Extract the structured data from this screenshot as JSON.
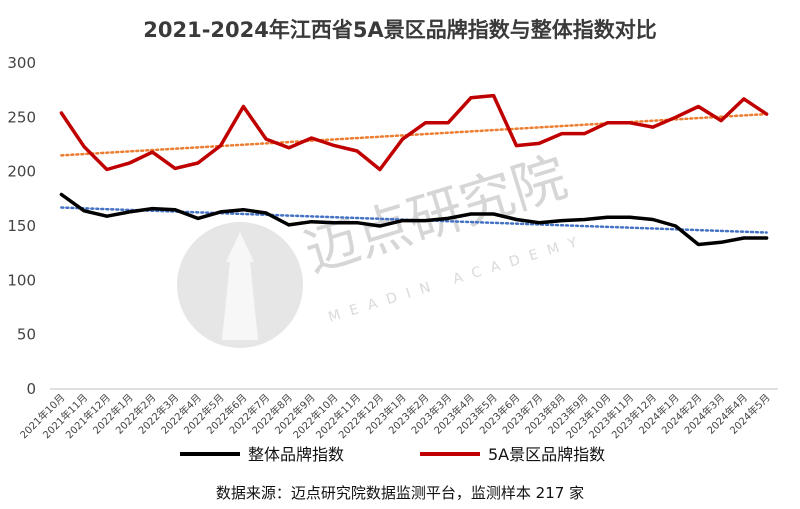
{
  "title": "2021-2024年江西省5A景区品牌指数与整体指数对比",
  "source_note": "数据来源：迈点研究院数据监测平台，监测样本 217 家",
  "watermark": {
    "text": "迈点研究院",
    "subtext": "MEADIN ACADEMY"
  },
  "colors": {
    "overall": "#000000",
    "five_a": "#c00000",
    "overall_trend": "#4472c4",
    "five_a_trend": "#ed7d31"
  },
  "chart_data": {
    "type": "line",
    "title": "2021-2024年江西省5A景区品牌指数与整体指数对比",
    "xlabel": "",
    "ylabel": "",
    "ylim": [
      0,
      300
    ],
    "yticks": [
      0,
      50,
      100,
      150,
      200,
      250,
      300
    ],
    "grid": false,
    "legend_position": "bottom",
    "categories": [
      "2021年10月",
      "2021年11月",
      "2021年12月",
      "2022年1月",
      "2022年2月",
      "2022年3月",
      "2022年4月",
      "2022年5月",
      "2022年6月",
      "2022年7月",
      "2022年8月",
      "2022年9月",
      "2022年10月",
      "2022年11月",
      "2022年12月",
      "2023年1月",
      "2023年2月",
      "2023年3月",
      "2023年4月",
      "2023年5月",
      "2023年6月",
      "2023年7月",
      "2023年8月",
      "2023年9月",
      "2023年10月",
      "2023年11月",
      "2023年12月",
      "2024年1月",
      "2024年2月",
      "2024年3月",
      "2024年4月",
      "2024年5月"
    ],
    "series": [
      {
        "name": "整体品牌指数",
        "color": "#000000",
        "values": [
          179,
          164,
          159,
          163,
          166,
          165,
          157,
          163,
          165,
          162,
          151,
          154,
          153,
          153,
          150,
          155,
          155,
          157,
          161,
          161,
          156,
          153,
          155,
          156,
          158,
          158,
          156,
          150,
          133,
          135,
          139,
          139
        ]
      },
      {
        "name": "5A景区品牌指数",
        "color": "#c00000",
        "values": [
          254,
          223,
          202,
          208,
          218,
          203,
          208,
          224,
          260,
          230,
          222,
          231,
          224,
          219,
          202,
          230,
          245,
          245,
          268,
          270,
          224,
          226,
          235,
          235,
          245,
          245,
          241,
          250,
          260,
          247,
          267,
          253
        ]
      }
    ],
    "trendlines": [
      {
        "series": "整体品牌指数",
        "style": "dotted",
        "color": "#4472c4",
        "start": 167,
        "end": 144
      },
      {
        "series": "5A景区品牌指数",
        "style": "dotted",
        "color": "#ed7d31",
        "start": 215,
        "end": 253
      }
    ]
  }
}
